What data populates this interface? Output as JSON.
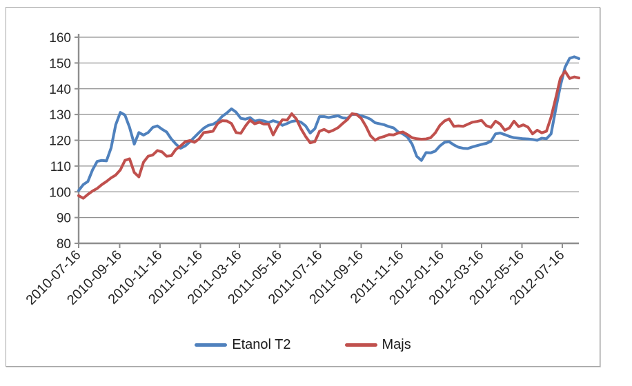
{
  "chart_data": {
    "type": "line",
    "title": "",
    "xlabel": "",
    "ylabel": "",
    "ylim": [
      80,
      160
    ],
    "y_ticks": [
      80,
      90,
      100,
      110,
      120,
      130,
      140,
      150,
      160
    ],
    "grid": true,
    "legend_position": "bottom",
    "tick_label_rotation": -45,
    "point_interval_days": 7,
    "total_days": 756,
    "x_tick_labels": [
      "2010-07-16",
      "2010-09-16",
      "2010-11-16",
      "2011-01-16",
      "2011-03-16",
      "2011-05-16",
      "2011-07-16",
      "2011-09-16",
      "2011-11-16",
      "2012-01-16",
      "2012-03-16",
      "2012-05-16",
      "2012-07-16"
    ],
    "x_tick_day_offsets": [
      0,
      62,
      123,
      184,
      243,
      304,
      365,
      427,
      488,
      549,
      609,
      670,
      731
    ],
    "series": [
      {
        "name": "Etanol T2",
        "color": "#4F81BD",
        "values": [
          100.5,
          102.8,
          104.0,
          108.5,
          111.8,
          112.2,
          112.0,
          117.0,
          126.0,
          130.8,
          129.8,
          125.0,
          118.5,
          123.0,
          122.0,
          123.0,
          125.0,
          125.6,
          124.3,
          123.2,
          120.5,
          118.5,
          116.9,
          117.8,
          119.4,
          121.2,
          123.0,
          124.7,
          125.8,
          126.2,
          127.3,
          129.3,
          130.6,
          132.2,
          130.9,
          128.5,
          128.2,
          128.8,
          127.4,
          127.8,
          127.5,
          126.9,
          127.6,
          127.0,
          125.8,
          126.5,
          127.3,
          127.6,
          127.0,
          125.6,
          122.8,
          124.5,
          129.2,
          129.2,
          128.8,
          129.2,
          129.5,
          128.7,
          128.5,
          130.0,
          130.1,
          129.5,
          129.0,
          128.2,
          126.8,
          126.4,
          126.0,
          125.3,
          124.8,
          123.2,
          122.5,
          121.2,
          118.5,
          113.8,
          112.2,
          115.2,
          115.1,
          115.8,
          117.8,
          119.2,
          119.4,
          118.2,
          117.3,
          116.9,
          116.8,
          117.4,
          117.9,
          118.4,
          118.8,
          119.6,
          122.5,
          122.8,
          122.2,
          121.5,
          121.0,
          120.8,
          120.6,
          120.5,
          120.3,
          120.0,
          120.8,
          120.6,
          122.5,
          132.0,
          141.0,
          148.3,
          151.8,
          152.4,
          151.7
        ]
      },
      {
        "name": "Majs",
        "color": "#C0504D",
        "values": [
          98.5,
          97.5,
          99.0,
          100.3,
          101.3,
          102.8,
          104.0,
          105.4,
          106.5,
          108.5,
          112.2,
          112.8,
          107.5,
          105.8,
          111.5,
          113.8,
          114.3,
          116.0,
          115.5,
          113.8,
          114.0,
          116.5,
          117.8,
          119.4,
          119.9,
          119.2,
          120.5,
          123.0,
          123.2,
          123.5,
          126.5,
          127.6,
          127.5,
          126.5,
          123.0,
          122.7,
          125.5,
          127.8,
          126.4,
          127.0,
          126.3,
          126.3,
          122.1,
          125.5,
          128.0,
          127.8,
          130.3,
          128.3,
          124.5,
          121.5,
          119.0,
          119.5,
          123.5,
          124.2,
          123.2,
          123.9,
          124.9,
          126.5,
          128.0,
          130.3,
          130.0,
          128.5,
          125.5,
          121.8,
          120.0,
          121.0,
          121.5,
          122.2,
          122.1,
          122.8,
          123.2,
          122.2,
          121.0,
          120.6,
          120.4,
          120.5,
          121.0,
          122.9,
          125.8,
          127.5,
          128.3,
          125.4,
          125.6,
          125.4,
          126.2,
          127.0,
          127.3,
          127.7,
          125.7,
          125.0,
          127.4,
          126.3,
          123.9,
          124.8,
          127.4,
          125.3,
          126.0,
          125.1,
          122.5,
          123.9,
          122.9,
          123.5,
          129.0,
          136.3,
          144.0,
          146.8,
          144.0,
          144.6,
          144.2
        ]
      }
    ]
  },
  "style": {
    "background": "#ffffff",
    "frame_border_color": "#a6a6a6",
    "grid_color": "#919191",
    "axis_color": "#8e8e8e",
    "text_color": "#262626"
  }
}
